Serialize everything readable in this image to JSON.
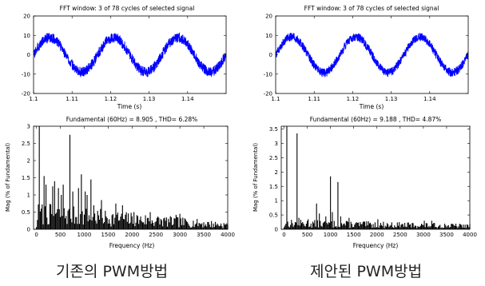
{
  "captions": {
    "left": "기존의 PWM방법",
    "right": "제안된 PWM방법"
  },
  "colors": {
    "signal": "#0000ff",
    "bars": "#000000",
    "axis": "#000000"
  },
  "chart_data": [
    {
      "type": "line",
      "title": "FFT window: 3 of 78 cycles of selected signal",
      "xlabel": "Time (s)",
      "ylabel": "",
      "xlim": [
        1.1,
        1.15
      ],
      "ylim": [
        -20,
        20
      ],
      "xticks": [
        1.1,
        1.11,
        1.12,
        1.13,
        1.14
      ],
      "xtick_labels": [
        "1.1",
        "1.11",
        "1.12",
        "1.13",
        "1.14"
      ],
      "yticks": [
        -20,
        -10,
        0,
        10,
        20
      ],
      "ytick_labels": [
        "-20",
        "-10",
        "0",
        "10",
        "20"
      ],
      "series": [
        {
          "frequency_hz": 60,
          "amplitude": 8.905,
          "ripple": 2.6,
          "x": [
            1.1,
            1.10417,
            1.10833,
            1.1125,
            1.11667,
            1.12083,
            1.125,
            1.12917,
            1.13333,
            1.1375,
            1.14167,
            1.14583,
            1.15
          ],
          "y": [
            0,
            8.9,
            0,
            -8.9,
            0,
            8.9,
            0,
            -8.9,
            0,
            8.9,
            0,
            -8.9,
            0
          ]
        }
      ]
    },
    {
      "type": "line",
      "title": "FFT window: 3 of 78 cycles of selected signal",
      "xlabel": "Time (s)",
      "ylabel": "",
      "xlim": [
        1.1,
        1.15
      ],
      "ylim": [
        -20,
        20
      ],
      "xticks": [
        1.1,
        1.11,
        1.12,
        1.13,
        1.14
      ],
      "xtick_labels": [
        "1.1",
        "1.11",
        "1.12",
        "1.13",
        "1.14"
      ],
      "yticks": [
        -20,
        -10,
        0,
        10,
        20
      ],
      "ytick_labels": [
        "-20",
        "-10",
        "0",
        "10",
        "20"
      ],
      "series": [
        {
          "frequency_hz": 60,
          "amplitude": 9.188,
          "ripple": 2.2,
          "x": [
            1.1,
            1.10417,
            1.10833,
            1.1125,
            1.11667,
            1.12083,
            1.125,
            1.12917,
            1.13333,
            1.1375,
            1.14167,
            1.14583,
            1.15
          ],
          "y": [
            0,
            9.19,
            0,
            -9.19,
            0,
            9.19,
            0,
            -9.19,
            0,
            9.19,
            0,
            -9.19,
            0
          ]
        }
      ]
    },
    {
      "type": "bar",
      "title": "Fundamental (60Hz) = 8.905 , THD= 6.28%",
      "xlabel": "Frequency (Hz)",
      "ylabel": "Mag (% of Fundamental)",
      "xlim": [
        -60,
        4000
      ],
      "ylim": [
        0,
        3
      ],
      "xticks": [
        0,
        500,
        1000,
        1500,
        2000,
        2500,
        3000,
        3500,
        4000
      ],
      "xtick_labels": [
        "0",
        "500",
        "1000",
        "1500",
        "2000",
        "2500",
        "3000",
        "3500",
        "4000"
      ],
      "yticks": [
        0,
        0.5,
        1,
        1.5,
        2,
        2.5,
        3
      ],
      "ytick_labels": [
        "0",
        "0.5",
        "1",
        "1.5",
        "2",
        "2.5",
        "3"
      ],
      "bin_hz": 20,
      "fundamental_value": 100,
      "peaks": [
        {
          "x": 60,
          "y": 3.5
        },
        {
          "x": 100,
          "y": 0.6
        },
        {
          "x": 160,
          "y": 1.55
        },
        {
          "x": 200,
          "y": 1.3
        },
        {
          "x": 340,
          "y": 1.25
        },
        {
          "x": 380,
          "y": 1.4
        },
        {
          "x": 460,
          "y": 1.2
        },
        {
          "x": 520,
          "y": 1.0
        },
        {
          "x": 560,
          "y": 1.3
        },
        {
          "x": 700,
          "y": 2.75
        },
        {
          "x": 760,
          "y": 1.1
        },
        {
          "x": 880,
          "y": 1.2
        },
        {
          "x": 940,
          "y": 1.6
        },
        {
          "x": 1020,
          "y": 1.1
        },
        {
          "x": 1060,
          "y": 1.0
        },
        {
          "x": 1140,
          "y": 1.45
        },
        {
          "x": 1200,
          "y": 0.7
        },
        {
          "x": 1360,
          "y": 0.85
        },
        {
          "x": 1660,
          "y": 0.75
        },
        {
          "x": 1800,
          "y": 0.7
        },
        {
          "x": 2040,
          "y": 0.5
        },
        {
          "x": 2380,
          "y": 0.5
        },
        {
          "x": 2920,
          "y": 0.42
        },
        {
          "x": 3000,
          "y": 0.45
        }
      ],
      "noise": {
        "seed": 7,
        "base_start": 0.45,
        "base_end": 0.12,
        "spread": 0.5
      }
    },
    {
      "type": "bar",
      "title": "Fundamental (60Hz) = 9.188 , THD= 4.87%",
      "xlabel": "Frequency (Hz)",
      "ylabel": "Mag (% of Fundamental)",
      "xlim": [
        -60,
        4000
      ],
      "ylim": [
        0,
        3.6
      ],
      "xticks": [
        0,
        500,
        1000,
        1500,
        2000,
        2500,
        3000,
        3500,
        4000
      ],
      "xtick_labels": [
        "0",
        "500",
        "1000",
        "1500",
        "2000",
        "2500",
        "3000",
        "3500",
        "4000"
      ],
      "yticks": [
        0,
        0.5,
        1,
        1.5,
        2,
        2.5,
        3,
        3.5
      ],
      "ytick_labels": [
        "0",
        "0.5",
        "1",
        "1.5",
        "2",
        "2.5",
        "3",
        "3.5"
      ],
      "bin_hz": 20,
      "fundamental_value": 100,
      "peaks": [
        {
          "x": 60,
          "y": 3.6
        },
        {
          "x": 280,
          "y": 3.35
        },
        {
          "x": 320,
          "y": 0.4
        },
        {
          "x": 520,
          "y": 0.35
        },
        {
          "x": 700,
          "y": 0.9
        },
        {
          "x": 760,
          "y": 0.55
        },
        {
          "x": 900,
          "y": 0.45
        },
        {
          "x": 1000,
          "y": 1.85
        },
        {
          "x": 1040,
          "y": 0.6
        },
        {
          "x": 1160,
          "y": 1.65
        },
        {
          "x": 1220,
          "y": 0.45
        },
        {
          "x": 1400,
          "y": 0.4
        },
        {
          "x": 2020,
          "y": 0.35
        },
        {
          "x": 3020,
          "y": 0.3
        },
        {
          "x": 3180,
          "y": 0.3
        }
      ],
      "noise": {
        "seed": 13,
        "base_start": 0.22,
        "base_end": 0.12,
        "spread": 0.45
      }
    }
  ]
}
